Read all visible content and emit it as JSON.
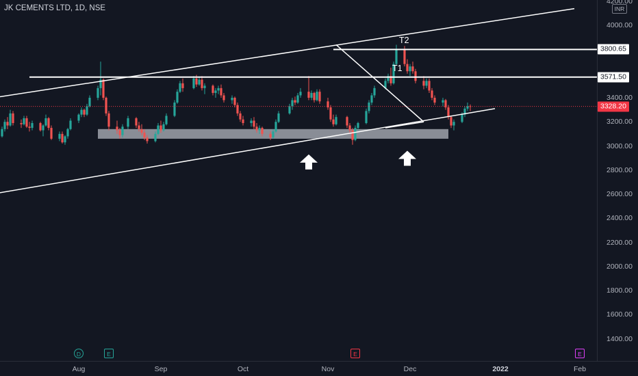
{
  "header": {
    "title": "JK CEMENTS LTD, 1D, NSE"
  },
  "currency": "INR",
  "colors": {
    "up": "#26a69a",
    "down": "#ef5350",
    "zone": "#b2b5be",
    "line": "#ffffff",
    "price": "#f23645"
  },
  "chart_data": {
    "type": "candlestick",
    "title": "JK CEMENTS LTD, 1D, NSE",
    "y_ticks": [
      1400,
      1600,
      1800,
      2000,
      2200,
      2400,
      2600,
      2800,
      3000,
      3200,
      3400,
      3600,
      3800,
      4000,
      4200
    ],
    "y_tick_labels": [
      "1400.00",
      "1600.00",
      "1800.00",
      "2000.00",
      "2200.00",
      "2400.00",
      "2600.00",
      "2800.00",
      "3000.00",
      "3200.00",
      "3400.00",
      "",
      "",
      "4000.00",
      "4200.00"
    ],
    "x_labels": [
      {
        "label": "Aug",
        "date": "2021-08-02"
      },
      {
        "label": "Sep",
        "date": "2021-09-01"
      },
      {
        "label": "Oct",
        "date": "2021-10-01"
      },
      {
        "label": "Nov",
        "date": "2021-11-01"
      },
      {
        "label": "Dec",
        "date": "2021-12-01"
      },
      {
        "label": "2022",
        "date": "2022-01-03"
      },
      {
        "label": "Feb",
        "date": "2022-02-01"
      }
    ],
    "price_tags": [
      {
        "value": 3800.65,
        "label": "3800.65",
        "kind": "white"
      },
      {
        "value": 3571.5,
        "label": "3571.50",
        "kind": "white"
      },
      {
        "value": 3328.2,
        "label": "3328.20",
        "kind": "red"
      }
    ],
    "horizontal_lines": [
      {
        "label": "T2",
        "price": 3800.65,
        "from": "2021-11-03"
      },
      {
        "label": "T1",
        "price": 3571.5,
        "from": "2021-07-15"
      }
    ],
    "current_price": 3328.2,
    "support_zone": {
      "from": "2021-08-09",
      "to": "2021-12-15",
      "low": 3060,
      "high": 3140
    },
    "trendlines": [
      {
        "name": "channel-upper",
        "start": {
          "date": "2021-06-26",
          "price": 3380
        },
        "end": {
          "date": "2022-01-30",
          "price": 4140
        }
      },
      {
        "name": "channel-lower",
        "start": {
          "date": "2021-06-26",
          "price": 2580
        },
        "end": {
          "date": "2022-01-01",
          "price": 3310
        }
      },
      {
        "name": "falling-upper",
        "start": {
          "date": "2021-11-04",
          "price": 3840
        },
        "end": {
          "date": "2021-12-06",
          "price": 3200
        }
      },
      {
        "name": "falling-lower",
        "start": {
          "date": "2021-11-22",
          "price": 3150
        },
        "end": {
          "date": "2021-12-06",
          "price": 3200
        }
      }
    ],
    "arrows": [
      {
        "name": "arrow-up-1",
        "date": "2021-10-25",
        "price": 2930
      },
      {
        "name": "arrow-up-2",
        "date": "2021-11-30",
        "price": 2960
      }
    ],
    "events": [
      {
        "symbol": "D",
        "date": "2021-08-02",
        "kind": "dividend"
      },
      {
        "symbol": "E",
        "date": "2021-08-13",
        "kind": "earnings"
      },
      {
        "symbol": "E",
        "date": "2021-11-11",
        "kind": "earnings-red"
      },
      {
        "symbol": "E",
        "date": "2022-02-01",
        "kind": "earnings-future"
      }
    ],
    "candles": [
      [
        "2021-06-26",
        2840,
        2860,
        2800,
        2830
      ],
      [
        "2021-06-28",
        2830,
        2960,
        2820,
        2940
      ],
      [
        "2021-06-29",
        2940,
        3080,
        2930,
        3060
      ],
      [
        "2021-06-30",
        3060,
        3090,
        3010,
        3040
      ],
      [
        "2021-07-01",
        3040,
        3070,
        3000,
        3030
      ],
      [
        "2021-07-02",
        3030,
        3100,
        3020,
        3080
      ],
      [
        "2021-07-05",
        3080,
        3160,
        3070,
        3140
      ],
      [
        "2021-07-06",
        3140,
        3220,
        3120,
        3200
      ],
      [
        "2021-07-07",
        3200,
        3240,
        3140,
        3170
      ],
      [
        "2021-07-08",
        3170,
        3300,
        3160,
        3270
      ],
      [
        "2021-07-09",
        3270,
        3290,
        3170,
        3190
      ],
      [
        "2021-07-12",
        3190,
        3220,
        3150,
        3180
      ],
      [
        "2021-07-13",
        3180,
        3250,
        3170,
        3230
      ],
      [
        "2021-07-14",
        3230,
        3250,
        3150,
        3160
      ],
      [
        "2021-07-15",
        3160,
        3200,
        3120,
        3150
      ],
      [
        "2021-07-16",
        3150,
        3210,
        3130,
        3190
      ],
      [
        "2021-07-19",
        3190,
        3200,
        3120,
        3130
      ],
      [
        "2021-07-20",
        3130,
        3180,
        3080,
        3170
      ],
      [
        "2021-07-21",
        3170,
        3260,
        3160,
        3230
      ],
      [
        "2021-07-22",
        3230,
        3240,
        3130,
        3150
      ],
      [
        "2021-07-23",
        3150,
        3170,
        3050,
        3060
      ],
      [
        "2021-07-26",
        3060,
        3120,
        3040,
        3100
      ],
      [
        "2021-07-27",
        3100,
        3120,
        3020,
        3030
      ],
      [
        "2021-07-28",
        3030,
        3090,
        3010,
        3080
      ],
      [
        "2021-07-29",
        3080,
        3150,
        3060,
        3140
      ],
      [
        "2021-07-30",
        3140,
        3230,
        3130,
        3210
      ],
      [
        "2021-08-02",
        3210,
        3270,
        3190,
        3260
      ],
      [
        "2021-08-03",
        3260,
        3320,
        3240,
        3300
      ],
      [
        "2021-08-04",
        3300,
        3310,
        3240,
        3260
      ],
      [
        "2021-08-05",
        3260,
        3350,
        3250,
        3330
      ],
      [
        "2021-08-06",
        3330,
        3420,
        3320,
        3400
      ],
      [
        "2021-08-09",
        3400,
        3500,
        3380,
        3480
      ],
      [
        "2021-08-10",
        3480,
        3700,
        3420,
        3550
      ],
      [
        "2021-08-11",
        3550,
        3560,
        3380,
        3400
      ],
      [
        "2021-08-12",
        3400,
        3410,
        3250,
        3270
      ],
      [
        "2021-08-13",
        3270,
        3290,
        3130,
        3160
      ],
      [
        "2021-08-16",
        3160,
        3210,
        3100,
        3130
      ],
      [
        "2021-08-17",
        3130,
        3150,
        3060,
        3090
      ],
      [
        "2021-08-18",
        3090,
        3180,
        3070,
        3160
      ],
      [
        "2021-08-20",
        3160,
        3250,
        3140,
        3230
      ],
      [
        "2021-08-23",
        3230,
        3240,
        3150,
        3170
      ],
      [
        "2021-08-24",
        3170,
        3200,
        3120,
        3140
      ],
      [
        "2021-08-25",
        3140,
        3180,
        3090,
        3110
      ],
      [
        "2021-08-26",
        3110,
        3140,
        3050,
        3070
      ],
      [
        "2021-08-27",
        3070,
        3090,
        3020,
        3040
      ],
      [
        "2021-08-30",
        3040,
        3120,
        3030,
        3100
      ],
      [
        "2021-08-31",
        3100,
        3190,
        3090,
        3170
      ],
      [
        "2021-09-01",
        3170,
        3210,
        3110,
        3130
      ],
      [
        "2021-09-02",
        3130,
        3200,
        3120,
        3180
      ],
      [
        "2021-09-03",
        3180,
        3270,
        3170,
        3250
      ],
      [
        "2021-09-06",
        3250,
        3380,
        3240,
        3360
      ],
      [
        "2021-09-07",
        3360,
        3470,
        3350,
        3450
      ],
      [
        "2021-09-08",
        3450,
        3540,
        3440,
        3520
      ],
      [
        "2021-09-09",
        3520,
        3560,
        3450,
        3480
      ],
      [
        "2021-09-13",
        3480,
        3580,
        3470,
        3560
      ],
      [
        "2021-09-14",
        3560,
        3590,
        3490,
        3510
      ],
      [
        "2021-09-15",
        3510,
        3570,
        3500,
        3550
      ],
      [
        "2021-09-16",
        3550,
        3580,
        3460,
        3480
      ],
      [
        "2021-09-17",
        3480,
        3520,
        3430,
        3500
      ],
      [
        "2021-09-20",
        3500,
        3510,
        3420,
        3440
      ],
      [
        "2021-09-21",
        3440,
        3480,
        3400,
        3460
      ],
      [
        "2021-09-22",
        3460,
        3500,
        3430,
        3480
      ],
      [
        "2021-09-23",
        3480,
        3510,
        3400,
        3420
      ],
      [
        "2021-09-24",
        3420,
        3440,
        3360,
        3380
      ],
      [
        "2021-09-27",
        3380,
        3420,
        3350,
        3400
      ],
      [
        "2021-09-28",
        3400,
        3410,
        3320,
        3340
      ],
      [
        "2021-09-29",
        3340,
        3360,
        3250,
        3270
      ],
      [
        "2021-09-30",
        3270,
        3290,
        3200,
        3220
      ],
      [
        "2021-10-01",
        3220,
        3250,
        3170,
        3190
      ],
      [
        "2021-10-04",
        3190,
        3230,
        3160,
        3210
      ],
      [
        "2021-10-05",
        3210,
        3240,
        3140,
        3160
      ],
      [
        "2021-10-06",
        3160,
        3190,
        3110,
        3130
      ],
      [
        "2021-10-07",
        3130,
        3170,
        3100,
        3150
      ],
      [
        "2021-10-08",
        3150,
        3160,
        3080,
        3100
      ],
      [
        "2021-10-11",
        3100,
        3120,
        3050,
        3070
      ],
      [
        "2021-10-12",
        3070,
        3140,
        3060,
        3120
      ],
      [
        "2021-10-13",
        3120,
        3220,
        3110,
        3200
      ],
      [
        "2021-10-14",
        3200,
        3290,
        3190,
        3270
      ],
      [
        "2021-10-18",
        3270,
        3350,
        3260,
        3330
      ],
      [
        "2021-10-19",
        3330,
        3400,
        3300,
        3380
      ],
      [
        "2021-10-20",
        3380,
        3410,
        3340,
        3360
      ],
      [
        "2021-10-21",
        3360,
        3440,
        3350,
        3420
      ],
      [
        "2021-10-22",
        3420,
        3480,
        3400,
        3450
      ],
      [
        "2021-10-25",
        3450,
        3580,
        3380,
        3400
      ],
      [
        "2021-10-26",
        3400,
        3460,
        3380,
        3440
      ],
      [
        "2021-10-27",
        3440,
        3450,
        3360,
        3380
      ],
      [
        "2021-10-28",
        3380,
        3470,
        3370,
        3450
      ],
      [
        "2021-10-29",
        3450,
        3470,
        3350,
        3370
      ],
      [
        "2021-11-01",
        3370,
        3400,
        3300,
        3320
      ],
      [
        "2021-11-02",
        3320,
        3340,
        3200,
        3220
      ],
      [
        "2021-11-03",
        3220,
        3260,
        3160,
        3180
      ],
      [
        "2021-11-04",
        3180,
        3260,
        3170,
        3240
      ],
      [
        "2021-11-08",
        3240,
        3250,
        3150,
        3170
      ],
      [
        "2021-11-09",
        3170,
        3190,
        3100,
        3130
      ],
      [
        "2021-11-10",
        3130,
        3150,
        3010,
        3050
      ],
      [
        "2021-11-11",
        3050,
        3170,
        3040,
        3150
      ],
      [
        "2021-11-12",
        3150,
        3200,
        3130,
        3190
      ],
      [
        "2021-11-15",
        3190,
        3310,
        3180,
        3290
      ],
      [
        "2021-11-16",
        3290,
        3380,
        3270,
        3360
      ],
      [
        "2021-11-17",
        3360,
        3440,
        3340,
        3420
      ],
      [
        "2021-11-18",
        3420,
        3500,
        3400,
        3480
      ],
      [
        "2021-11-22",
        3480,
        3560,
        3470,
        3540
      ],
      [
        "2021-11-23",
        3540,
        3600,
        3520,
        3580
      ],
      [
        "2021-11-24",
        3580,
        3650,
        3500,
        3520
      ],
      [
        "2021-11-25",
        3520,
        3700,
        3510,
        3680
      ],
      [
        "2021-11-26",
        3680,
        3840,
        3670,
        3800
      ],
      [
        "2021-11-29",
        3800,
        3830,
        3660,
        3680
      ],
      [
        "2021-11-30",
        3680,
        3720,
        3600,
        3620
      ],
      [
        "2021-12-01",
        3620,
        3680,
        3580,
        3660
      ],
      [
        "2021-12-02",
        3660,
        3700,
        3600,
        3620
      ],
      [
        "2021-12-03",
        3620,
        3640,
        3520,
        3540
      ],
      [
        "2021-12-06",
        3540,
        3580,
        3470,
        3500
      ],
      [
        "2021-12-07",
        3500,
        3560,
        3480,
        3540
      ],
      [
        "2021-12-08",
        3540,
        3560,
        3440,
        3460
      ],
      [
        "2021-12-09",
        3460,
        3480,
        3380,
        3400
      ],
      [
        "2021-12-10",
        3400,
        3420,
        3340,
        3360
      ],
      [
        "2021-12-13",
        3360,
        3400,
        3330,
        3380
      ],
      [
        "2021-12-14",
        3380,
        3390,
        3300,
        3320
      ],
      [
        "2021-12-15",
        3320,
        3340,
        3220,
        3240
      ],
      [
        "2021-12-16",
        3240,
        3250,
        3150,
        3170
      ],
      [
        "2021-12-17",
        3170,
        3220,
        3130,
        3200
      ],
      [
        "2021-12-20",
        3200,
        3280,
        3190,
        3260
      ],
      [
        "2021-12-21",
        3260,
        3330,
        3240,
        3310
      ],
      [
        "2021-12-22",
        3310,
        3360,
        3290,
        3330
      ],
      [
        "2021-12-23",
        3330,
        3345,
        3290,
        3328.2
      ]
    ]
  }
}
